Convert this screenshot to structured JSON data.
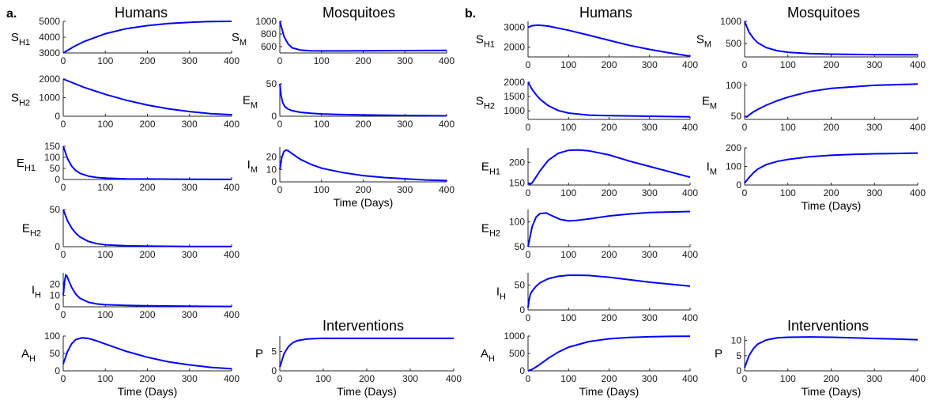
{
  "panels": [
    {
      "label": "a.",
      "humans_title": "Humans",
      "mosquitoes_title": "Mosquitoes",
      "interventions_title": "Interventions"
    },
    {
      "label": "b.",
      "humans_title": "Humans",
      "mosquitoes_title": "Mosquitoes",
      "interventions_title": "Interventions"
    }
  ],
  "chart_data": [
    {
      "panel": "a",
      "type": "line",
      "ylabel": "S",
      "ylabel_sub": "H1",
      "xlim": [
        0,
        400
      ],
      "xticks": [
        0,
        100,
        200,
        300,
        400
      ],
      "ylim": [
        3000,
        5000
      ],
      "yticks": [
        3000,
        4000,
        5000
      ],
      "x": [
        0,
        25,
        50,
        100,
        150,
        200,
        250,
        300,
        350,
        400
      ],
      "series": [
        {
          "values": [
            3000,
            3400,
            3730,
            4220,
            4540,
            4730,
            4860,
            4940,
            4990,
            5030
          ]
        }
      ]
    },
    {
      "panel": "a",
      "type": "line",
      "ylabel": "S",
      "ylabel_sub": "M",
      "xlim": [
        0,
        400
      ],
      "xticks": [
        0,
        100,
        200,
        300,
        400
      ],
      "ylim": [
        500,
        1000
      ],
      "yticks": [
        600,
        800,
        1000
      ],
      "x": [
        0,
        10,
        20,
        30,
        50,
        75,
        100,
        150,
        200,
        300,
        400
      ],
      "series": [
        {
          "values": [
            1000,
            760,
            640,
            580,
            545,
            535,
            532,
            532,
            534,
            537,
            540
          ]
        }
      ]
    },
    {
      "panel": "a",
      "type": "line",
      "ylabel": "S",
      "ylabel_sub": "H2",
      "xlim": [
        0,
        400
      ],
      "xticks": [
        0,
        100,
        200,
        300,
        400
      ],
      "ylim": [
        0,
        2000
      ],
      "yticks": [
        0,
        1000,
        2000
      ],
      "x": [
        0,
        50,
        100,
        150,
        200,
        250,
        300,
        350,
        400
      ],
      "series": [
        {
          "values": [
            2000,
            1550,
            1180,
            860,
            600,
            400,
            250,
            140,
            80
          ]
        }
      ]
    },
    {
      "panel": "a",
      "type": "line",
      "ylabel": "E",
      "ylabel_sub": "M",
      "xlim": [
        0,
        400
      ],
      "xticks": [
        0,
        100,
        200,
        300,
        400
      ],
      "ylim": [
        0,
        50
      ],
      "yticks": [
        0,
        50
      ],
      "x": [
        0,
        3,
        7,
        12,
        20,
        30,
        50,
        75,
        100,
        150,
        200,
        300,
        400
      ],
      "series": [
        {
          "values": [
            50,
            32,
            21,
            15,
            11,
            8.5,
            6,
            4.5,
            3.5,
            2.5,
            2,
            1.2,
            0.6
          ]
        }
      ]
    },
    {
      "panel": "a",
      "type": "line",
      "ylabel": "E",
      "ylabel_sub": "H1",
      "xlim": [
        0,
        400
      ],
      "xticks": [
        0,
        100,
        200,
        300,
        400
      ],
      "ylim": [
        0,
        150
      ],
      "yticks": [
        0,
        50,
        100,
        150
      ],
      "x": [
        0,
        10,
        20,
        30,
        40,
        60,
        80,
        100,
        150,
        200,
        300,
        400
      ],
      "series": [
        {
          "values": [
            150,
            95,
            60,
            40,
            28,
            15,
            9,
            6,
            3,
            2,
            1,
            0.5
          ]
        }
      ]
    },
    {
      "panel": "a",
      "type": "line",
      "ylabel": "I",
      "ylabel_sub": "M",
      "xlim": [
        0,
        400
      ],
      "xticks": [
        0,
        100,
        200,
        300,
        400
      ],
      "ylim": [
        0,
        28
      ],
      "yticks": [
        0,
        10,
        20
      ],
      "x": [
        0,
        5,
        10,
        15,
        20,
        30,
        50,
        75,
        100,
        150,
        200,
        250,
        300,
        350,
        400
      ],
      "series": [
        {
          "values": [
            10,
            20,
            24.5,
            25.5,
            25,
            22.5,
            18,
            14,
            11,
            7.5,
            5,
            3.5,
            2.5,
            1.5,
            1
          ]
        }
      ]
    },
    {
      "panel": "a",
      "type": "line",
      "ylabel": "E",
      "ylabel_sub": "H2",
      "xlim": [
        0,
        400
      ],
      "xticks": [
        0,
        100,
        200,
        300,
        400
      ],
      "ylim": [
        0,
        50
      ],
      "yticks": [
        0,
        50
      ],
      "x": [
        0,
        10,
        20,
        30,
        40,
        60,
        80,
        100,
        150,
        200,
        300,
        400
      ],
      "series": [
        {
          "values": [
            50,
            35,
            25,
            18,
            13,
            7,
            4,
            2.5,
            1.2,
            0.7,
            0.3,
            0.2
          ]
        }
      ]
    },
    {
      "panel": "a",
      "type": "line",
      "ylabel": "I",
      "ylabel_sub": "H",
      "xlim": [
        0,
        400
      ],
      "xticks": [
        0,
        100,
        200,
        300,
        400
      ],
      "ylim": [
        0,
        30
      ],
      "yticks": [
        0,
        10,
        20
      ],
      "x": [
        0,
        3,
        6,
        9,
        12,
        20,
        30,
        40,
        60,
        80,
        100,
        150,
        200,
        300,
        400
      ],
      "series": [
        {
          "values": [
            10,
            22,
            28,
            27,
            24,
            17,
            11,
            7.5,
            4,
            2.5,
            1.8,
            1.2,
            0.9,
            0.5,
            0.3
          ]
        }
      ]
    },
    {
      "panel": "a",
      "type": "line",
      "ylabel": "A",
      "ylabel_sub": "H",
      "xlim": [
        0,
        400
      ],
      "xticks": [
        0,
        100,
        200,
        300,
        400
      ],
      "ylim": [
        0,
        100
      ],
      "yticks": [
        0,
        50,
        100
      ],
      "x": [
        0,
        10,
        20,
        30,
        45,
        60,
        80,
        100,
        150,
        200,
        250,
        300,
        350,
        400
      ],
      "series": [
        {
          "values": [
            20,
            55,
            78,
            90,
            95,
            93,
            86,
            77,
            56,
            39,
            26,
            17,
            10,
            6
          ]
        }
      ]
    },
    {
      "panel": "a",
      "type": "line",
      "ylabel": "P",
      "ylabel_sub": "",
      "xlim": [
        0,
        400
      ],
      "xticks": [
        0,
        100,
        200,
        300,
        400
      ],
      "ylim": [
        0,
        9
      ],
      "yticks": [
        0,
        5
      ],
      "x": [
        0,
        10,
        20,
        30,
        40,
        60,
        80,
        100,
        150,
        200,
        300,
        400
      ],
      "series": [
        {
          "values": [
            1,
            4.5,
            6.3,
            7.3,
            7.8,
            8.2,
            8.35,
            8.4,
            8.4,
            8.4,
            8.4,
            8.4
          ]
        }
      ]
    },
    {
      "panel": "b",
      "type": "line",
      "ylabel": "S",
      "ylabel_sub": "H1",
      "xlim": [
        0,
        400
      ],
      "xticks": [
        0,
        100,
        200,
        300,
        400
      ],
      "ylim": [
        1500,
        3300
      ],
      "yticks": [
        2000,
        3000
      ],
      "x": [
        0,
        10,
        25,
        50,
        100,
        150,
        200,
        250,
        300,
        350,
        400
      ],
      "series": [
        {
          "values": [
            3000,
            3080,
            3110,
            3060,
            2850,
            2600,
            2340,
            2090,
            1880,
            1700,
            1540
          ]
        }
      ]
    },
    {
      "panel": "b",
      "type": "line",
      "ylabel": "S",
      "ylabel_sub": "M",
      "xlim": [
        0,
        400
      ],
      "xticks": [
        0,
        100,
        200,
        300,
        400
      ],
      "ylim": [
        200,
        1000
      ],
      "yticks": [
        500,
        1000
      ],
      "x": [
        0,
        10,
        20,
        30,
        50,
        75,
        100,
        150,
        200,
        300,
        400
      ],
      "series": [
        {
          "values": [
            1000,
            760,
            620,
            520,
            410,
            340,
            305,
            275,
            262,
            252,
            248
          ]
        }
      ]
    },
    {
      "panel": "b",
      "type": "line",
      "ylabel": "S",
      "ylabel_sub": "H2",
      "xlim": [
        0,
        400
      ],
      "xticks": [
        0,
        100,
        200,
        300,
        400
      ],
      "ylim": [
        700,
        2000
      ],
      "yticks": [
        1000,
        1500,
        2000
      ],
      "x": [
        0,
        10,
        20,
        30,
        50,
        75,
        100,
        150,
        200,
        300,
        400
      ],
      "series": [
        {
          "values": [
            2000,
            1750,
            1560,
            1400,
            1180,
            1010,
            920,
            850,
            830,
            810,
            790
          ]
        }
      ]
    },
    {
      "panel": "b",
      "type": "line",
      "ylabel": "E",
      "ylabel_sub": "M",
      "xlim": [
        0,
        400
      ],
      "xticks": [
        0,
        100,
        200,
        300,
        400
      ],
      "ylim": [
        45,
        105
      ],
      "yticks": [
        50,
        100
      ],
      "x": [
        0,
        5,
        10,
        20,
        30,
        50,
        75,
        100,
        150,
        200,
        300,
        400
      ],
      "series": [
        {
          "values": [
            50,
            49,
            52,
            57,
            61,
            68,
            75,
            81,
            90,
            95,
            100,
            102
          ]
        }
      ]
    },
    {
      "panel": "b",
      "type": "line",
      "ylabel": "E",
      "ylabel_sub": "H1",
      "xlim": [
        0,
        400
      ],
      "xticks": [
        0,
        100,
        200,
        300,
        400
      ],
      "ylim": [
        145,
        235
      ],
      "yticks": [
        150,
        200
      ],
      "x": [
        0,
        5,
        10,
        20,
        30,
        50,
        75,
        100,
        125,
        150,
        200,
        250,
        300,
        350,
        400
      ],
      "series": [
        {
          "values": [
            150,
            147,
            150,
            165,
            180,
            205,
            222,
            229,
            230,
            228,
            218,
            203,
            190,
            177,
            164
          ]
        }
      ]
    },
    {
      "panel": "b",
      "type": "line",
      "ylabel": "I",
      "ylabel_sub": "M",
      "xlim": [
        0,
        400
      ],
      "xticks": [
        0,
        100,
        200,
        300,
        400
      ],
      "ylim": [
        0,
        200
      ],
      "yticks": [
        0,
        100,
        200
      ],
      "x": [
        0,
        5,
        10,
        20,
        30,
        50,
        75,
        100,
        150,
        200,
        250,
        300,
        350,
        400
      ],
      "series": [
        {
          "values": [
            10,
            25,
            40,
            65,
            85,
            110,
            127,
            138,
            152,
            160,
            165,
            168,
            170,
            172
          ]
        }
      ]
    },
    {
      "panel": "b",
      "type": "line",
      "ylabel": "E",
      "ylabel_sub": "H2",
      "xlim": [
        0,
        400
      ],
      "xticks": [
        0,
        100,
        200,
        300,
        400
      ],
      "ylim": [
        50,
        125
      ],
      "yticks": [
        50,
        100
      ],
      "x": [
        0,
        10,
        20,
        30,
        45,
        60,
        80,
        100,
        120,
        150,
        200,
        250,
        300,
        350,
        400
      ],
      "series": [
        {
          "values": [
            50,
            90,
            110,
            117,
            118,
            112,
            105,
            102,
            103,
            106,
            112,
            116,
            119,
            120,
            121
          ]
        }
      ]
    },
    {
      "panel": "b",
      "type": "line",
      "ylabel": "I",
      "ylabel_sub": "H",
      "xlim": [
        0,
        400
      ],
      "xticks": [
        0,
        100,
        200,
        300,
        400
      ],
      "ylim": [
        0,
        75
      ],
      "yticks": [
        0,
        50
      ],
      "x": [
        0,
        3,
        6,
        10,
        20,
        30,
        50,
        75,
        100,
        125,
        150,
        200,
        250,
        300,
        350,
        400
      ],
      "series": [
        {
          "values": [
            5,
            22,
            32,
            38,
            48,
            55,
            63,
            68,
            70,
            70,
            69.5,
            66,
            61,
            56,
            52,
            48
          ]
        }
      ]
    },
    {
      "panel": "b",
      "type": "line",
      "ylabel": "A",
      "ylabel_sub": "H",
      "xlim": [
        0,
        400
      ],
      "xticks": [
        0,
        100,
        200,
        300,
        400
      ],
      "ylim": [
        0,
        1000
      ],
      "yticks": [
        0,
        500,
        1000
      ],
      "x": [
        0,
        10,
        25,
        50,
        75,
        100,
        150,
        200,
        250,
        300,
        350,
        400
      ],
      "series": [
        {
          "values": [
            0,
            40,
            150,
            360,
            540,
            680,
            840,
            920,
            960,
            980,
            990,
            995
          ]
        }
      ]
    },
    {
      "panel": "b",
      "type": "line",
      "ylabel": "P",
      "ylabel_sub": "",
      "xlim": [
        0,
        400
      ],
      "xticks": [
        0,
        100,
        200,
        300,
        400
      ],
      "ylim": [
        0,
        11.5
      ],
      "yticks": [
        0,
        5,
        10
      ],
      "x": [
        0,
        10,
        20,
        30,
        50,
        75,
        100,
        150,
        200,
        250,
        300,
        350,
        400
      ],
      "series": [
        {
          "values": [
            1,
            5,
            7.3,
            8.8,
            10.2,
            10.9,
            11.1,
            11.2,
            11.1,
            10.9,
            10.7,
            10.5,
            10.3
          ]
        }
      ]
    }
  ],
  "x_axis_label": "Time (Days)",
  "colors": {
    "line": "#0000ff",
    "axis": "#262626"
  }
}
